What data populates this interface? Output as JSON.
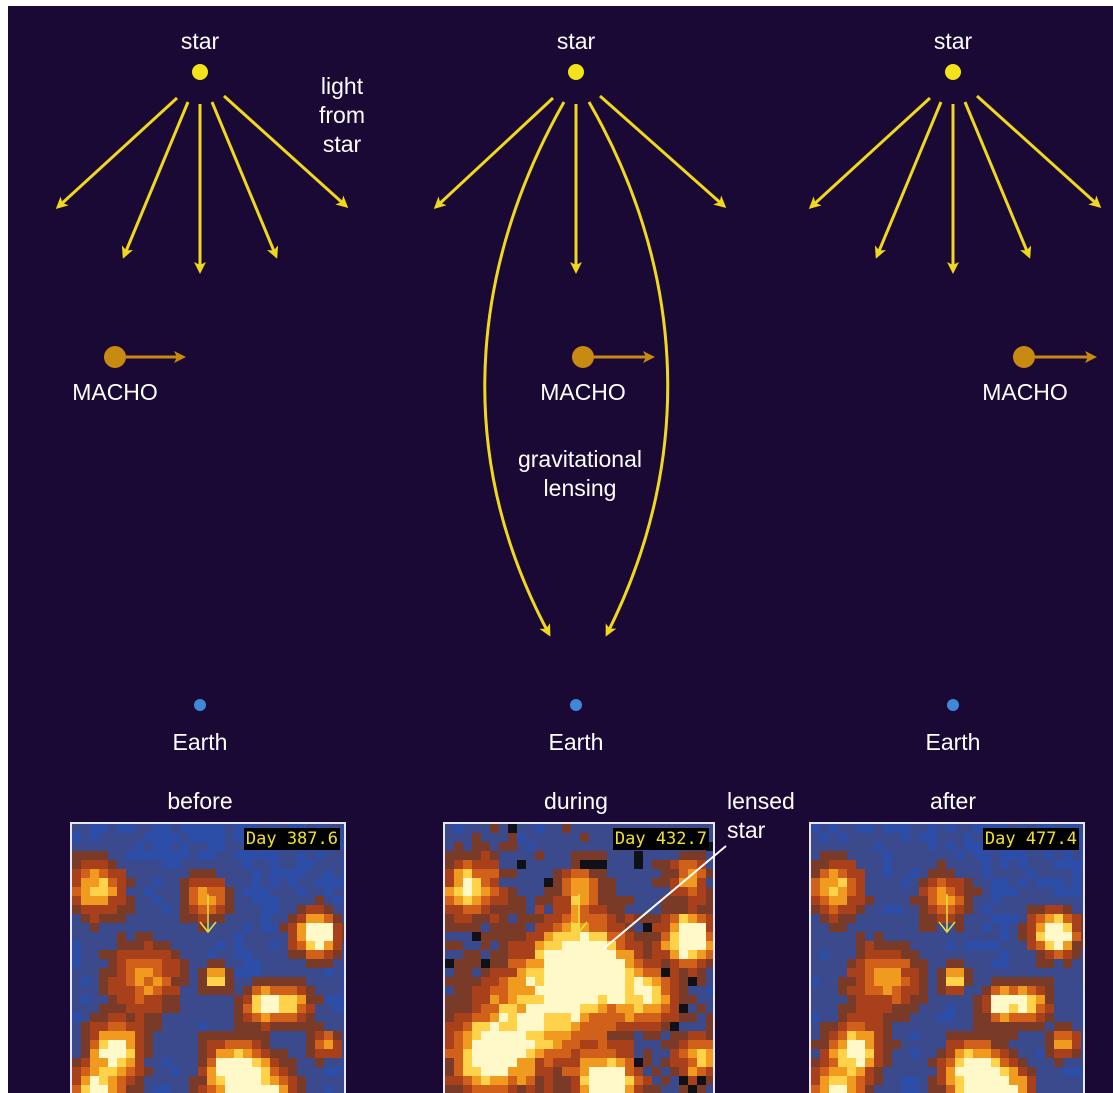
{
  "diagram": {
    "columns": [
      {
        "id": "before",
        "star_label": "star",
        "macho_label": "MACHO",
        "earth_label": "Earth",
        "phase_label": "before",
        "day_label": "Day 387.6"
      },
      {
        "id": "during",
        "star_label": "star",
        "macho_label": "MACHO",
        "earth_label": "Earth",
        "phase_label": "during",
        "day_label": "Day 432.7"
      },
      {
        "id": "after",
        "star_label": "star",
        "macho_label": "MACHO",
        "earth_label": "Earth",
        "phase_label": "after",
        "day_label": "Day 477.4"
      }
    ],
    "annotations": {
      "light_from_star": "light\nfrom\nstar",
      "gravitational_lensing": "gravitational\nlensing",
      "lensed_star": "lensed\nstar"
    },
    "colors": {
      "background": "#1a0835",
      "star": "#f5e31a",
      "light_rays": "#f0d81c",
      "macho": "#c98a12",
      "earth": "#3f88d8",
      "text": "#ffffff",
      "image_bg": "#3050a8",
      "image_hot": "#fff8c0"
    }
  }
}
